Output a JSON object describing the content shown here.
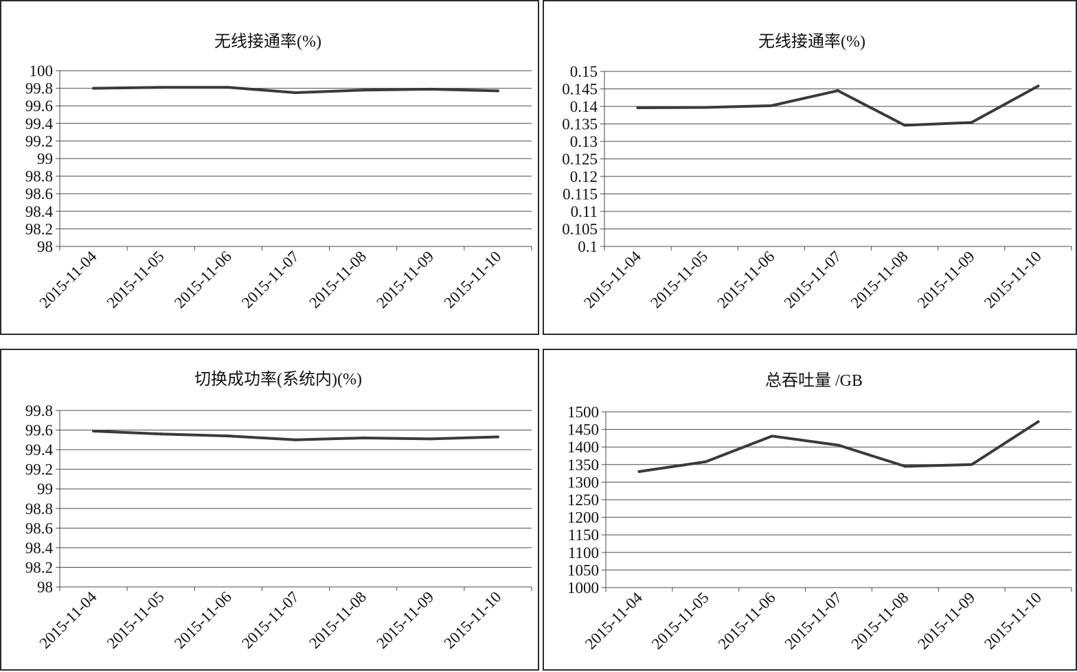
{
  "chart_data": [
    {
      "type": "line",
      "title": "无线接通率(%)",
      "categories": [
        "2015-11-04",
        "2015-11-05",
        "2015-11-06",
        "2015-11-07",
        "2015-11-08",
        "2015-11-09",
        "2015-11-10"
      ],
      "values": [
        99.8,
        99.81,
        99.81,
        99.75,
        99.78,
        99.79,
        99.77
      ],
      "ylim": [
        98,
        100
      ],
      "yticks": [
        "100",
        "99.8",
        "99.6",
        "99.4",
        "99.2",
        "99",
        "98.8",
        "98.6",
        "98.4",
        "98.2",
        "98"
      ],
      "grid": true
    },
    {
      "type": "line",
      "title": "无线接通率(%)",
      "categories": [
        "2015-11-04",
        "2015-11-05",
        "2015-11-06",
        "2015-11-07",
        "2015-11-08",
        "2015-11-09",
        "2015-11-10"
      ],
      "values": [
        0.1396,
        0.1397,
        0.1402,
        0.1445,
        0.1346,
        0.1354,
        0.1458
      ],
      "ylim": [
        0.1,
        0.15
      ],
      "yticks": [
        "0.15",
        "0.145",
        "0.14",
        "0.135",
        "0.13",
        "0.125",
        "0.12",
        "0.115",
        "0.11",
        "0.105",
        "0.1"
      ],
      "grid": true
    },
    {
      "type": "line",
      "title": "切换成功率(系统内)(%)",
      "categories": [
        "2015-11-04",
        "2015-11-05",
        "2015-11-06",
        "2015-11-07",
        "2015-11-08",
        "2015-11-09",
        "2015-11-10"
      ],
      "values": [
        99.59,
        99.56,
        99.54,
        99.5,
        99.52,
        99.51,
        99.53
      ],
      "ylim": [
        98,
        99.8
      ],
      "yticks": [
        "99.8",
        "99.6",
        "99.4",
        "99.2",
        "99",
        "98.8",
        "98.6",
        "98.4",
        "98.2",
        "98"
      ],
      "grid": true
    },
    {
      "type": "line",
      "title": "总吞吐量 /GB",
      "categories": [
        "2015-11-04",
        "2015-11-05",
        "2015-11-06",
        "2015-11-07",
        "2015-11-08",
        "2015-11-09",
        "2015-11-10"
      ],
      "values": [
        1330,
        1358,
        1431,
        1405,
        1345,
        1350,
        1472
      ],
      "ylim": [
        1000,
        1500
      ],
      "yticks": [
        "1500",
        "1450",
        "1400",
        "1350",
        "1300",
        "1250",
        "1200",
        "1150",
        "1100",
        "1050",
        "1000"
      ],
      "grid": true
    }
  ]
}
